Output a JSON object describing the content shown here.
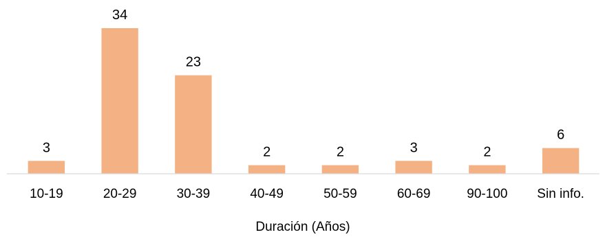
{
  "chart_data": {
    "type": "bar",
    "categories": [
      "10-19",
      "20-29",
      "30-39",
      "40-49",
      "50-59",
      "60-69",
      "90-100",
      "Sin info."
    ],
    "values": [
      3,
      34,
      23,
      2,
      2,
      3,
      2,
      6
    ],
    "title": "",
    "xlabel": "Duración (Años)",
    "ylabel": "",
    "ylim": [
      0,
      34
    ],
    "grid": false,
    "legend": "none",
    "bar_color": "#f4b183",
    "axis_color": "#d9d9d9"
  }
}
